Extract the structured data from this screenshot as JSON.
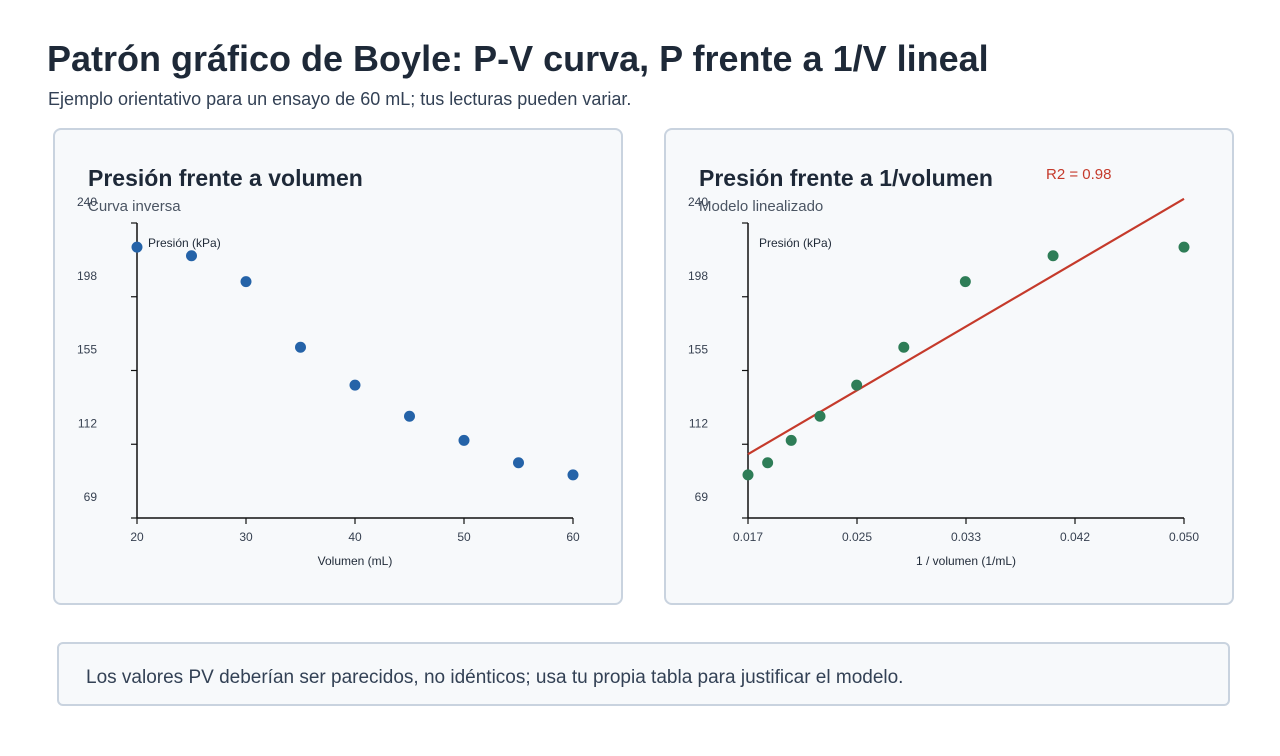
{
  "header": {
    "title": "Patrón gráfico de Boyle: P-V curva, P frente a 1/V lineal",
    "subtitle": "Ejemplo orientativo para un ensayo de 60 mL; tus lecturas pueden variar."
  },
  "note": {
    "text": "Los valores PV deberían ser parecidos, no idénticos; usa tu propia tabla para justificar el modelo."
  },
  "chart_data": [
    {
      "type": "scatter",
      "title": "Presión frente a volumen",
      "subtitle": "Curva inversa",
      "xlabel": "Volumen (mL)",
      "ylabel": "Presión (kPa)",
      "xlim": [
        20,
        60
      ],
      "ylim": [
        69,
        240
      ],
      "x_ticks": [
        "20",
        "30",
        "40",
        "50",
        "60"
      ],
      "y_ticks": [
        "69",
        "112",
        "155",
        "198",
        "240"
      ],
      "grid": false,
      "point_color": "#2563a8",
      "series": [
        {
          "x": [
            20,
            25,
            30,
            35,
            40,
            45,
            50,
            55,
            60
          ],
          "y": [
            226,
            221,
            206,
            168,
            146,
            128,
            114,
            101,
            94
          ]
        }
      ]
    },
    {
      "type": "scatter",
      "title": "Presión frente a 1/volumen",
      "subtitle": "Modelo linealizado",
      "xlabel": "1 / volumen (1/mL)",
      "ylabel": "Presión (kPa)",
      "xlim": [
        0.0167,
        0.05
      ],
      "ylim": [
        69,
        240
      ],
      "x_ticks": [
        "0.017",
        "0.025",
        "0.033",
        "0.042",
        "0.050"
      ],
      "y_ticks": [
        "69",
        "112",
        "155",
        "198",
        "240"
      ],
      "grid": false,
      "point_color": "#2e7d57",
      "fit_color": "#c53a2b",
      "fit_label": "R2 = 0.98",
      "fit_line": {
        "x": [
          0.0167,
          0.05
        ],
        "y": [
          106,
          254
        ]
      },
      "series": [
        {
          "x": [
            0.05,
            0.04,
            0.0333,
            0.0286,
            0.025,
            0.0222,
            0.02,
            0.0182,
            0.0167
          ],
          "y": [
            226,
            221,
            206,
            168,
            146,
            128,
            114,
            101,
            94
          ]
        }
      ]
    }
  ]
}
